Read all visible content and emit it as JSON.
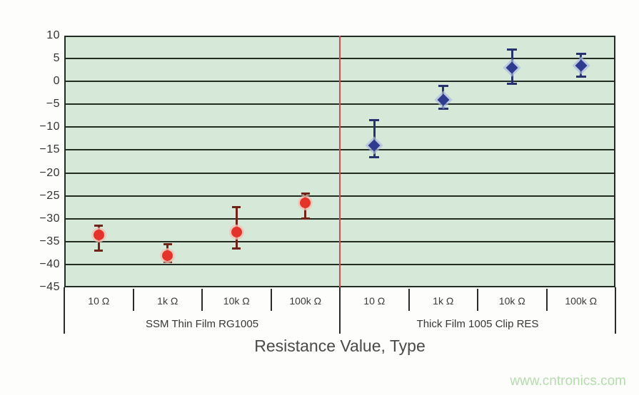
{
  "page": {
    "background": "#fdfdfb",
    "watermark": "www.cntronics.com",
    "watermark_color": "#b5dbae"
  },
  "chart_data": {
    "type": "scatter",
    "title": "",
    "xlabel": "Resistance Value, Type",
    "ylabel": "",
    "ylim": [
      -45,
      10
    ],
    "yticks": [
      10,
      5,
      0,
      -5,
      -10,
      -15,
      -20,
      -25,
      -30,
      -35,
      -40,
      -45
    ],
    "grid": true,
    "legend": "none",
    "plot_bg_color": "#d6e9d9",
    "grid_color": "#232c22",
    "divider_color": "#d0504b",
    "error_bar_style": "vertical with caps",
    "groups": [
      {
        "label": "SSM Thin Film RG1005",
        "marker": "circle",
        "marker_color": "#e4332a",
        "halo_color": "rgba(246,190,180,0.75)",
        "error_color": "#702319",
        "points": [
          {
            "category": "10 Ω",
            "value": -33.5,
            "err_high": -31.5,
            "err_low": -37
          },
          {
            "category": "1k Ω",
            "value": -38,
            "err_high": -35.5,
            "err_low": -39.5
          },
          {
            "category": "10k Ω",
            "value": -33,
            "err_high": -27.5,
            "err_low": -36.5
          },
          {
            "category": "100k Ω",
            "value": -26.5,
            "err_high": -24.5,
            "err_low": -30
          }
        ]
      },
      {
        "label": "Thick Film 1005 Clip RES",
        "marker": "diamond",
        "marker_color": "#2e3b8e",
        "halo_color": "rgba(175,186,224,0.7)",
        "error_color": "#27336e",
        "points": [
          {
            "category": "10 Ω",
            "value": -14,
            "err_high": -8.5,
            "err_low": -16.5
          },
          {
            "category": "1k Ω",
            "value": -4,
            "err_high": -1,
            "err_low": -6
          },
          {
            "category": "10k Ω",
            "value": 3,
            "err_high": 7,
            "err_low": -0.5
          },
          {
            "category": "100k Ω",
            "value": 3.5,
            "err_high": 6,
            "err_low": 1
          }
        ]
      }
    ]
  }
}
